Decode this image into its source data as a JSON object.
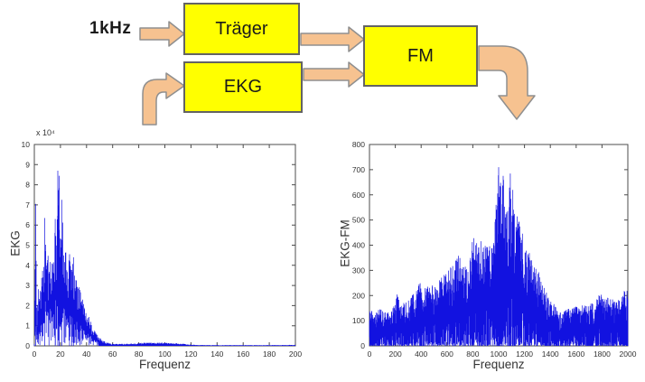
{
  "diagram": {
    "input_label": "1kHz",
    "blocks": [
      {
        "id": "traeger",
        "label": "Träger"
      },
      {
        "id": "ekg",
        "label": "EKG"
      },
      {
        "id": "fm",
        "label": "FM"
      }
    ],
    "box_fill": "#ffff00",
    "box_border": "#636363",
    "arrow_fill": "#f6c290",
    "arrow_border": "#8f8f8f"
  },
  "chart_data": [
    {
      "type": "line",
      "subtype": "noisy-magnitude-spectrum",
      "title": "",
      "xlabel": "Frequenz",
      "ylabel": "EKG",
      "exponent_label": "x 10⁴",
      "xlim": [
        0,
        200
      ],
      "ylim": [
        0,
        10
      ],
      "xticks": [
        0,
        20,
        40,
        60,
        80,
        100,
        120,
        140,
        160,
        180,
        200
      ],
      "yticks": [
        0,
        1,
        2,
        3,
        4,
        5,
        6,
        7,
        8,
        9,
        10
      ],
      "grid": false,
      "legend": null,
      "line_color": "#1212e0",
      "axis_color": "#4d4d4d",
      "envelope": [
        [
          0,
          0.2
        ],
        [
          1,
          7.05
        ],
        [
          2,
          1.2
        ],
        [
          3,
          3.3
        ],
        [
          4,
          2.2
        ],
        [
          5,
          3.4
        ],
        [
          6,
          4.2
        ],
        [
          7,
          3.1
        ],
        [
          8,
          6.35
        ],
        [
          9,
          4.8
        ],
        [
          10,
          5.2
        ],
        [
          11,
          4.2
        ],
        [
          12,
          4.7
        ],
        [
          13,
          4.1
        ],
        [
          14,
          4.9
        ],
        [
          15,
          4.4
        ],
        [
          16,
          6.3
        ],
        [
          17,
          5.1
        ],
        [
          18,
          8.7
        ],
        [
          19,
          8.45
        ],
        [
          20,
          5.6
        ],
        [
          21,
          7.25
        ],
        [
          22,
          5.9
        ],
        [
          23,
          4.7
        ],
        [
          24,
          4.8
        ],
        [
          25,
          4.2
        ],
        [
          26,
          4.0
        ],
        [
          27,
          4.55
        ],
        [
          28,
          3.9
        ],
        [
          29,
          4.1
        ],
        [
          30,
          4.4
        ],
        [
          31,
          3.7
        ],
        [
          32,
          3.6
        ],
        [
          33,
          3.1
        ],
        [
          34,
          3.4
        ],
        [
          35,
          2.8
        ],
        [
          36,
          2.6
        ],
        [
          37,
          2.4
        ],
        [
          38,
          2.2
        ],
        [
          39,
          2.0
        ],
        [
          40,
          1.8
        ],
        [
          42,
          1.45
        ],
        [
          44,
          1.15
        ],
        [
          46,
          0.85
        ],
        [
          48,
          0.6
        ],
        [
          50,
          0.42
        ],
        [
          52,
          0.3
        ],
        [
          55,
          0.18
        ],
        [
          58,
          0.13
        ],
        [
          62,
          0.1
        ],
        [
          70,
          0.1
        ],
        [
          78,
          0.13
        ],
        [
          85,
          0.16
        ],
        [
          92,
          0.17
        ],
        [
          100,
          0.16
        ],
        [
          106,
          0.14
        ],
        [
          112,
          0.12
        ],
        [
          118,
          0.07
        ],
        [
          124,
          0.05
        ],
        [
          140,
          0.04
        ],
        [
          160,
          0.04
        ],
        [
          180,
          0.04
        ],
        [
          200,
          0.05
        ]
      ],
      "peaks": [
        [
          1,
          7.05
        ],
        [
          8,
          6.35
        ],
        [
          16,
          6.3
        ],
        [
          18,
          8.7
        ],
        [
          19,
          8.45
        ],
        [
          21,
          7.25
        ],
        [
          30,
          4.4
        ],
        [
          27,
          4.55
        ]
      ]
    },
    {
      "type": "line",
      "subtype": "noisy-magnitude-spectrum",
      "title": "",
      "xlabel": "Frequenz",
      "ylabel": "EKG-FM",
      "exponent_label": "",
      "xlim": [
        0,
        2000
      ],
      "ylim": [
        0,
        800
      ],
      "xticks": [
        0,
        200,
        400,
        600,
        800,
        1000,
        1200,
        1400,
        1600,
        1800,
        2000
      ],
      "yticks": [
        0,
        100,
        200,
        300,
        400,
        500,
        600,
        700,
        800
      ],
      "grid": false,
      "legend": null,
      "line_color": "#1212e0",
      "axis_color": "#4d4d4d",
      "envelope": [
        [
          0,
          165
        ],
        [
          30,
          120
        ],
        [
          60,
          140
        ],
        [
          100,
          150
        ],
        [
          140,
          135
        ],
        [
          180,
          150
        ],
        [
          220,
          215
        ],
        [
          240,
          165
        ],
        [
          280,
          175
        ],
        [
          320,
          190
        ],
        [
          360,
          230
        ],
        [
          385,
          260
        ],
        [
          410,
          225
        ],
        [
          450,
          235
        ],
        [
          490,
          245
        ],
        [
          530,
          260
        ],
        [
          570,
          285
        ],
        [
          610,
          300
        ],
        [
          650,
          330
        ],
        [
          690,
          360
        ],
        [
          720,
          330
        ],
        [
          750,
          310
        ],
        [
          780,
          385
        ],
        [
          810,
          440
        ],
        [
          840,
          405
        ],
        [
          870,
          425
        ],
        [
          900,
          405
        ],
        [
          930,
          445
        ],
        [
          955,
          390
        ],
        [
          980,
          560
        ],
        [
          1000,
          710
        ],
        [
          1015,
          650
        ],
        [
          1035,
          675
        ],
        [
          1055,
          585
        ],
        [
          1075,
          555
        ],
        [
          1090,
          685
        ],
        [
          1105,
          635
        ],
        [
          1125,
          555
        ],
        [
          1145,
          515
        ],
        [
          1165,
          480
        ],
        [
          1185,
          445
        ],
        [
          1205,
          430
        ],
        [
          1230,
          395
        ],
        [
          1255,
          350
        ],
        [
          1280,
          330
        ],
        [
          1305,
          305
        ],
        [
          1330,
          260
        ],
        [
          1355,
          230
        ],
        [
          1380,
          205
        ],
        [
          1405,
          185
        ],
        [
          1430,
          165
        ],
        [
          1455,
          145
        ],
        [
          1475,
          132
        ],
        [
          1505,
          138
        ],
        [
          1545,
          150
        ],
        [
          1585,
          155
        ],
        [
          1625,
          160
        ],
        [
          1665,
          162
        ],
        [
          1705,
          168
        ],
        [
          1745,
          172
        ],
        [
          1785,
          210
        ],
        [
          1825,
          185
        ],
        [
          1865,
          200
        ],
        [
          1905,
          172
        ],
        [
          1945,
          192
        ],
        [
          1980,
          228
        ],
        [
          2000,
          222
        ]
      ],
      "peaks": [
        [
          1000,
          710
        ],
        [
          1090,
          685
        ],
        [
          1035,
          675
        ],
        [
          1015,
          648
        ],
        [
          1110,
          620
        ],
        [
          980,
          560
        ]
      ]
    }
  ]
}
